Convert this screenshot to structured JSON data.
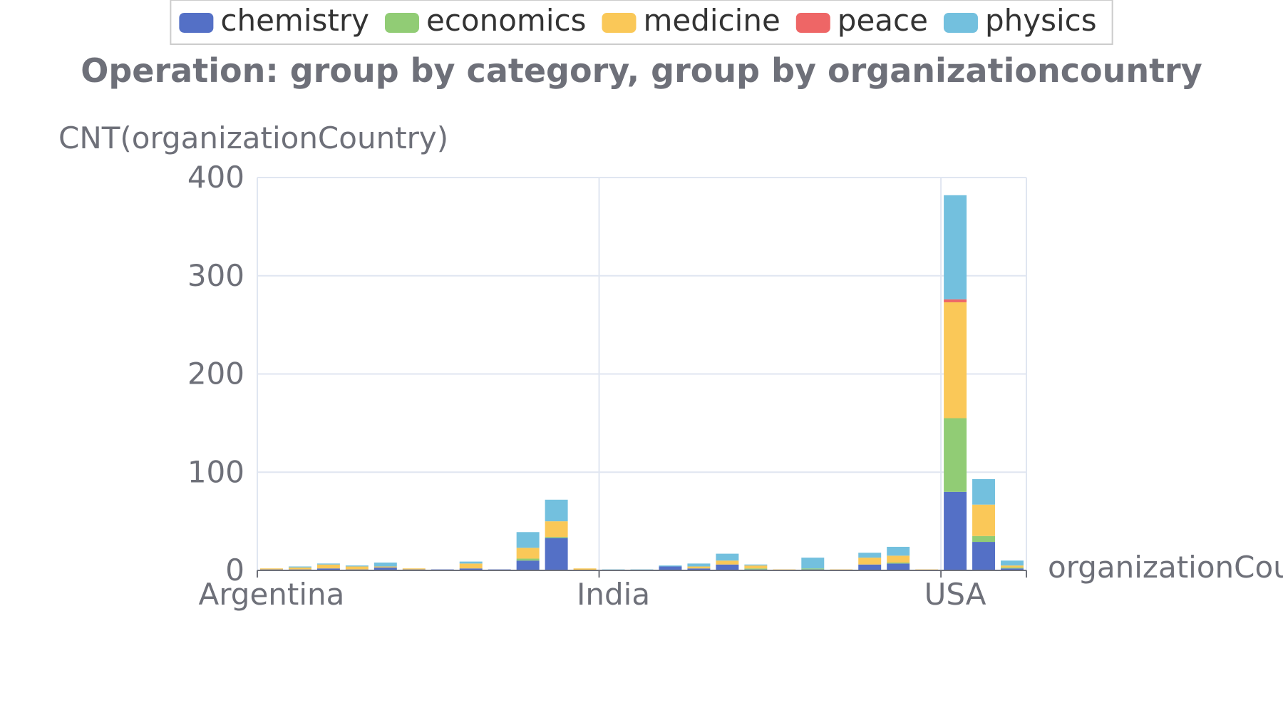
{
  "chart_data": {
    "type": "bar",
    "stacked": true,
    "title": "Operation: group by category, group by organizationcountry",
    "ylabel": "CNT(organizationCountry)",
    "xlabel": "organizationCountry",
    "ylim": [
      0,
      400
    ],
    "yticks": [
      0,
      100,
      200,
      300,
      400
    ],
    "xtick_labels": [
      "Argentina",
      "India",
      "USA"
    ],
    "xtick_label_indices": [
      0,
      12,
      24
    ],
    "grid": true,
    "legend_position": "top",
    "categories": [
      "Argentina",
      "",
      "",
      "",
      "",
      "",
      "",
      "",
      "",
      "",
      "",
      "",
      "India",
      "",
      "",
      "",
      "",
      "",
      "",
      "",
      "",
      "",
      "",
      "",
      "USA",
      "",
      ""
    ],
    "series": [
      {
        "name": "chemistry",
        "color": "#5470c6",
        "values": [
          1,
          1,
          2,
          1,
          3,
          1,
          1,
          2,
          1,
          10,
          33,
          0,
          0,
          0,
          4,
          2,
          6,
          1,
          0,
          1,
          0,
          6,
          7,
          0,
          80,
          29,
          2
        ]
      },
      {
        "name": "economics",
        "color": "#91cc75",
        "values": [
          0,
          0,
          0,
          0,
          0,
          0,
          0,
          0,
          0,
          2,
          1,
          0,
          0,
          0,
          0,
          0,
          0,
          1,
          0,
          1,
          0,
          0,
          1,
          0,
          75,
          6,
          1
        ]
      },
      {
        "name": "medicine",
        "color": "#fac858",
        "values": [
          1,
          2,
          4,
          3,
          1,
          1,
          0,
          5,
          0,
          11,
          16,
          2,
          0,
          0,
          0,
          2,
          4,
          3,
          1,
          0,
          1,
          7,
          7,
          1,
          118,
          32,
          2
        ]
      },
      {
        "name": "peace",
        "color": "#ee6666",
        "values": [
          0,
          0,
          0,
          0,
          0,
          0,
          0,
          0,
          0,
          0,
          0,
          0,
          0,
          0,
          0,
          0,
          0,
          0,
          0,
          0,
          0,
          0,
          0,
          0,
          3,
          0,
          0
        ]
      },
      {
        "name": "physics",
        "color": "#73c0de",
        "values": [
          0,
          1,
          1,
          1,
          4,
          0,
          0,
          2,
          0,
          16,
          22,
          0,
          1,
          1,
          1,
          3,
          7,
          1,
          0,
          11,
          0,
          5,
          9,
          0,
          106,
          26,
          5
        ]
      }
    ]
  }
}
